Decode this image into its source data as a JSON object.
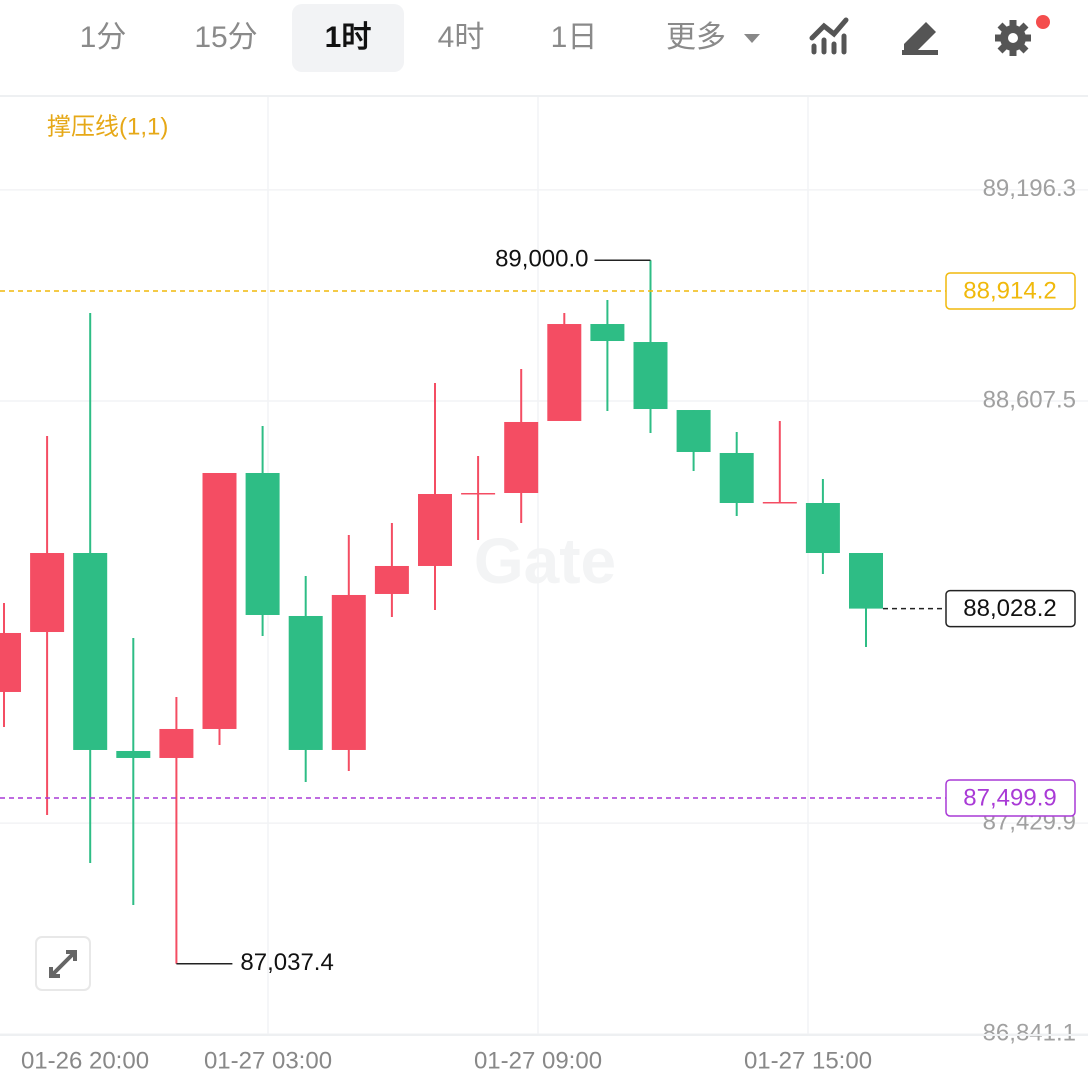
{
  "toolbar": {
    "intervals": [
      "1分",
      "15分",
      "1时",
      "4时",
      "1日"
    ],
    "selected_interval": 2,
    "more": "更多"
  },
  "chart_data": {
    "type": "candlestick",
    "indicator": "撑压线(1,1)",
    "watermark": "Gate",
    "up_color": "#f44d63",
    "down_color": "#2ebd85",
    "open": [
      87795.6,
      87962.9,
      88183.3,
      87631.0,
      87611.5,
      87692.4,
      88406.5,
      88007.6,
      87633.8,
      88069.0,
      88147.1,
      88347.9,
      88350.7,
      88551.6,
      88822.1,
      88771.9,
      88582.2,
      88462.3,
      88322.8,
      88322.8,
      88183.3
    ],
    "high": [
      88043.8,
      88509.7,
      88852.8,
      87946.2,
      87781.6,
      88406.5,
      88537.6,
      88119.2,
      88233.5,
      88267.0,
      88657.6,
      88453.9,
      88696.6,
      88852.8,
      88889.1,
      89000.0,
      88582.2,
      88520.9,
      88551.6,
      88389.8,
      88183.3
    ],
    "low": [
      87697.9,
      87452.4,
      87318.5,
      87201.4,
      87037.4,
      87647.7,
      87951.8,
      87544.5,
      87575.2,
      88004.8,
      88024.3,
      88219.6,
      88267.0,
      88551.6,
      88579.4,
      88518.1,
      88412.1,
      88286.5,
      88322.8,
      88124.7,
      87921.1
    ],
    "close": [
      87960.2,
      88183.3,
      87633.8,
      87611.5,
      87692.4,
      88406.5,
      88010.4,
      87633.8,
      88066.2,
      88147.1,
      88347.9,
      88350.7,
      88548.8,
      88822.1,
      88774.7,
      88585.0,
      88465.1,
      88322.8,
      88325.6,
      88183.3,
      88028.2
    ],
    "x_axis_labels": [
      "01-26 20:00",
      "01-27 03:00",
      "01-27 09:00",
      "01-27 15:00"
    ],
    "ylim": [
      86838.7,
      89455.4
    ],
    "yticks": [
      {
        "value": 86841.1,
        "label": "86,841.1"
      },
      {
        "value": 87429.9,
        "label": "87,429.9"
      },
      {
        "value": 88607.5,
        "label": "88,607.5"
      },
      {
        "value": 89196.3,
        "label": "89,196.3"
      }
    ],
    "grid": true,
    "high_marker": {
      "value": 89000.0,
      "label": "89,000.0"
    },
    "low_marker": {
      "value": 87037.4,
      "label": "87,037.4"
    },
    "resistance": {
      "value": 88914.2,
      "label": "88,914.2",
      "color": "#f0b90b"
    },
    "support": {
      "value": 87499.9,
      "label": "87,499.9",
      "color": "#a93ad6"
    },
    "last_price": {
      "value": 88028.2,
      "label": "88,028.2"
    }
  }
}
